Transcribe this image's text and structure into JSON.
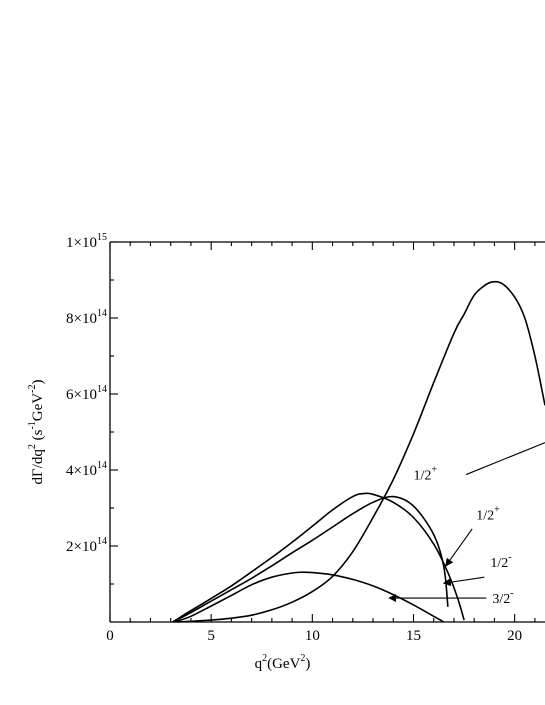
{
  "chart_data": {
    "type": "line",
    "xlabel": {
      "base": "q",
      "sup": "2",
      "unit_prefix": "(GeV",
      "unit_sup": "2",
      "unit_suffix": ")"
    },
    "ylabel": {
      "main": "dΓ/dq",
      "sup1": "2",
      "unit_open": " (s",
      "sup2": "-1",
      "mid": "GeV",
      "sup3": "-2",
      "close": ")"
    },
    "xlim": [
      0,
      21.5
    ],
    "ylim": [
      0,
      1000000000000000.0
    ],
    "xticks": [
      {
        "value": 0,
        "label": "0"
      },
      {
        "value": 5,
        "label": "5"
      },
      {
        "value": 10,
        "label": "10"
      },
      {
        "value": 15,
        "label": "15"
      },
      {
        "value": 20,
        "label": "20"
      }
    ],
    "yticks": [
      {
        "value": 200000000000000.0,
        "base": "2×10",
        "exp": "14"
      },
      {
        "value": 400000000000000.0,
        "base": "4×10",
        "exp": "14"
      },
      {
        "value": 600000000000000.0,
        "base": "6×10",
        "exp": "14"
      },
      {
        "value": 800000000000000.0,
        "base": "8×10",
        "exp": "14"
      },
      {
        "value": 1000000000000000.0,
        "base": "1×10",
        "exp": "15"
      }
    ],
    "series": [
      {
        "id": "a",
        "x": [
          3.1,
          4,
          5,
          6,
          7,
          8,
          9,
          10,
          11,
          12,
          13,
          14,
          15,
          16,
          16.5,
          16.7
        ],
        "y": [
          0,
          25000000000000.0,
          55000000000000.0,
          85000000000000.0,
          115000000000000.0,
          148000000000000.0,
          182000000000000.0,
          215000000000000.0,
          250000000000000.0,
          285000000000000.0,
          315000000000000.0,
          330000000000000.0,
          305000000000000.0,
          230000000000000.0,
          145000000000000.0,
          40000000000000.0
        ]
      },
      {
        "id": "b",
        "x": [
          3.1,
          4,
          5,
          6,
          7,
          8,
          9,
          10,
          11,
          12,
          12.5,
          13,
          14,
          15,
          16,
          16.7,
          17.2,
          17.5
        ],
        "y": [
          0,
          30000000000000.0,
          62000000000000.0,
          95000000000000.0,
          132000000000000.0,
          170000000000000.0,
          210000000000000.0,
          252000000000000.0,
          295000000000000.0,
          330000000000000.0,
          338000000000000.0,
          336000000000000.0,
          315000000000000.0,
          275000000000000.0,
          205000000000000.0,
          130000000000000.0,
          60000000000000.0,
          5000000000000.0
        ]
      },
      {
        "id": "c",
        "x": [
          3.2,
          4,
          5,
          6,
          7,
          8,
          9,
          9.5,
          10,
          11,
          12,
          13,
          14,
          15,
          16,
          16.5
        ],
        "y": [
          0,
          15000000000000.0,
          42000000000000.0,
          70000000000000.0,
          98000000000000.0,
          118000000000000.0,
          129000000000000.0,
          131000000000000.0,
          130000000000000.0,
          124000000000000.0,
          112000000000000.0,
          95000000000000.0,
          72000000000000.0,
          45000000000000.0,
          15000000000000.0,
          0
        ]
      },
      {
        "id": "d",
        "x": [
          3.3,
          5,
          6,
          7,
          8,
          9,
          10,
          11,
          12,
          13,
          14,
          15,
          16,
          17,
          17.5,
          18,
          18.5,
          18.9,
          19.4,
          20,
          20.5,
          21,
          21.5
        ],
        "y": [
          0,
          5000000000000.0,
          10000000000000.0,
          18000000000000.0,
          32000000000000.0,
          52000000000000.0,
          80000000000000.0,
          120000000000000.0,
          185000000000000.0,
          275000000000000.0,
          375000000000000.0,
          495000000000000.0,
          630000000000000.0,
          760000000000000.0,
          810000000000000.0,
          860000000000000.0,
          885000000000000.0,
          895000000000000.0,
          890000000000000.0,
          855000000000000.0,
          800000000000000.0,
          700000000000000.0,
          570000000000000.0
        ]
      }
    ],
    "annotations": [
      {
        "id": "ann-1",
        "base": "1/2",
        "sup": "+",
        "tx": 15.0,
        "ty": 375000000000000.0,
        "line": [
          [
            17.6,
            388000000000000.0
          ],
          [
            21.5,
            472000000000000.0
          ]
        ],
        "arrowhead": false
      },
      {
        "id": "ann-2",
        "base": "1/2",
        "sup": "+",
        "tx": 18.1,
        "ty": 270000000000000.0,
        "line": [
          [
            17.9,
            245000000000000.0
          ],
          [
            16.6,
            148000000000000.0
          ]
        ],
        "arrowhead": true
      },
      {
        "id": "ann-3",
        "base": "1/2",
        "sup": "-",
        "tx": 18.8,
        "ty": 145000000000000.0,
        "line": [
          [
            18.5,
            118000000000000.0
          ],
          [
            16.5,
            102000000000000.0
          ]
        ],
        "arrowhead": true
      },
      {
        "id": "ann-4",
        "base": "3/2",
        "sup": "-",
        "tx": 18.9,
        "ty": 50000000000000.0,
        "line": [
          [
            18.6,
            63000000000000.0
          ],
          [
            13.8,
            63000000000000.0
          ]
        ],
        "arrowhead": true
      }
    ]
  }
}
